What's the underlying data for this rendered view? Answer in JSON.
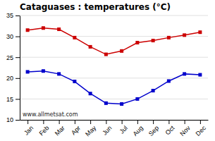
{
  "chart_data": {
    "type": "line",
    "title": "Cataguases : temperatures (°C)",
    "categories": [
      "Jan",
      "Feb",
      "Mar",
      "Apr",
      "May",
      "Jun",
      "Jul",
      "Aug",
      "Sep",
      "Oct",
      "Nov",
      "Dec"
    ],
    "series": [
      {
        "color": "#cc0000",
        "values": [
          31.5,
          32.0,
          31.7,
          29.7,
          27.5,
          25.7,
          26.5,
          28.5,
          29.0,
          29.7,
          30.3,
          31.0
        ]
      },
      {
        "color": "#0000cc",
        "values": [
          21.5,
          21.7,
          21.0,
          19.2,
          16.3,
          14.0,
          13.8,
          15.0,
          17.0,
          19.3,
          21.0,
          20.8
        ]
      }
    ],
    "ylim": [
      10,
      35
    ],
    "yticks": [
      10,
      15,
      20,
      25,
      30,
      35
    ],
    "grid": true,
    "marker": "square",
    "annotations": [
      "www.allmetsat.com"
    ]
  }
}
